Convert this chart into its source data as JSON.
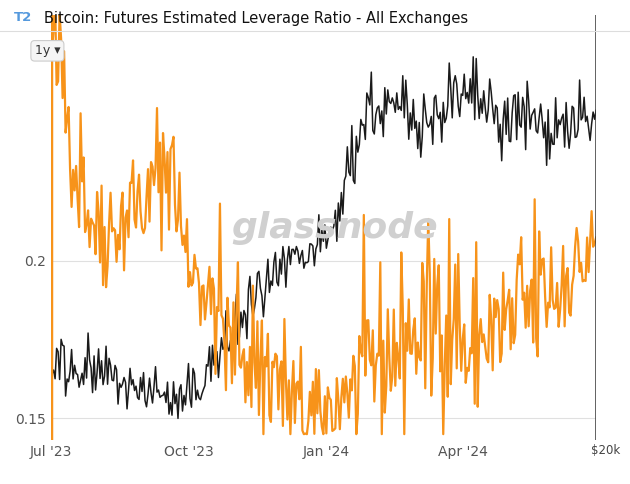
{
  "title": "Bitcoin: Futures Estimated Leverage Ratio - All Exchanges",
  "watermark": "glassnode",
  "right_label": "$20k",
  "y_ticks": [
    0.15,
    0.2
  ],
  "ylim": [
    0.143,
    0.278
  ],
  "x_tick_labels": [
    "Jul '23",
    "Oct '23",
    "Jan '24",
    "Apr '24"
  ],
  "x_tick_positions": [
    0,
    92,
    184,
    275
  ],
  "orange_color": "#F7931A",
  "black_color": "#1a1a1a",
  "bg_color": "#ffffff",
  "plot_bg_color": "#ffffff",
  "grid_color": "#e0e0e0",
  "left_vline_color": "#F7931A",
  "right_vline_color": "#333333",
  "orange_lw": 1.6,
  "black_lw": 1.1
}
